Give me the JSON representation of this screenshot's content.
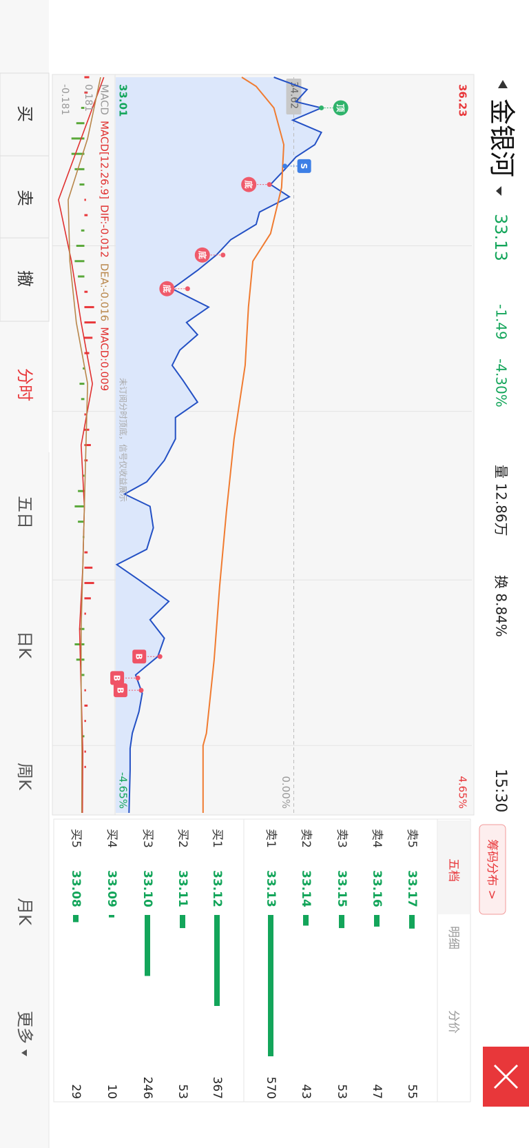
{
  "header": {
    "name": "金银河",
    "price": "33.13",
    "change": "-1.49",
    "change_pct": "-4.30%",
    "volume": "量 12.86万",
    "turnover": "换 8.84%",
    "time": "15:30"
  },
  "chart_data": [
    {
      "type": "line",
      "xlim": [
        0,
        240
      ],
      "xticks": [
        55,
        109,
        164,
        218
      ],
      "ylim": [
        33.01,
        36.23
      ],
      "yticks": [
        36.23,
        34.62,
        33.01
      ],
      "y2lim": [
        -4.65,
        4.65
      ],
      "y2ticks": [
        {
          "value": 4.65,
          "label": "4.65%"
        },
        {
          "value": 0,
          "label": "0.00%"
        },
        {
          "value": -4.65,
          "label": "-4.65%"
        }
      ],
      "up_color": "#e8373a",
      "down_color": "#13a55a",
      "note": "未订阅分时顶底，信号仅收益展示",
      "series": [
        {
          "color": "#2350c4",
          "fill": "#dce7fb",
          "x": [
            0,
            4,
            8,
            10,
            14,
            18,
            22,
            26,
            30,
            35,
            39,
            44,
            48,
            53,
            58,
            63,
            69,
            75,
            80,
            84,
            89,
            94,
            99,
            106,
            111,
            118,
            125,
            132,
            136,
            140,
            147,
            154,
            159,
            164,
            171,
            177,
            183,
            189,
            195,
            201,
            207,
            214,
            219,
            226,
            240
          ],
          "values": [
            34.44,
            34.74,
            34.64,
            34.87,
            34.61,
            34.87,
            34.81,
            34.64,
            34.54,
            34.41,
            34.58,
            34.31,
            34.28,
            34.05,
            33.92,
            33.75,
            33.52,
            33.85,
            33.65,
            33.75,
            33.59,
            33.52,
            33.62,
            33.75,
            33.55,
            33.55,
            33.45,
            33.29,
            33.09,
            33.32,
            33.35,
            33.29,
            33.02,
            33.22,
            33.49,
            33.32,
            33.45,
            33.39,
            33.19,
            33.25,
            33.22,
            33.16,
            33.14,
            33.14,
            33.13
          ]
        },
        {
          "color": "#f07b30",
          "x": [
            0,
            3,
            10,
            22,
            36,
            51,
            60,
            75,
            94,
            118,
            142,
            166,
            190,
            214,
            218,
            240
          ],
          "values": [
            34.15,
            34.28,
            34.44,
            34.53,
            34.51,
            34.41,
            34.25,
            34.21,
            34.18,
            34.08,
            34.01,
            33.95,
            33.9,
            33.83,
            33.8,
            33.8
          ]
        }
      ],
      "signals": [
        {
          "label": "顶",
          "x": 10,
          "y": 34.87,
          "color": "#2fb36b"
        },
        {
          "label": "S",
          "x": 29,
          "y": 34.54,
          "color": "#3d7fe6"
        },
        {
          "label": "底",
          "x": 35,
          "y": 34.4,
          "color": "#ef5b6b"
        },
        {
          "label": "底",
          "x": 58,
          "y": 33.98,
          "color": "#ef5b6b"
        },
        {
          "label": "底",
          "x": 69,
          "y": 33.66,
          "color": "#ef5b6b"
        },
        {
          "label": "B",
          "x": 189,
          "y": 33.41,
          "color": "#ef5366"
        },
        {
          "label": "B",
          "x": 196,
          "y": 33.21,
          "color": "#ef5366"
        },
        {
          "label": "B",
          "x": 200,
          "y": 33.24,
          "color": "#ef5366"
        }
      ]
    },
    {
      "type": "macd",
      "xlim": [
        0,
        240
      ],
      "ylim": [
        -0.181,
        0.181
      ],
      "yticks": [
        {
          "value": 0.181,
          "label": "0.181"
        },
        {
          "value": -0.181,
          "label": "-0.181"
        }
      ],
      "label": "MACD",
      "params": "MACD[12.26.9]",
      "dif_label": "DIF:-0.012",
      "dea_label": "DEA:-0.016",
      "macd_label": "MACD:0.009",
      "up_color": "#e8373a",
      "down_color": "#5aa83a",
      "bars": {
        "x": [
          0,
          5,
          10,
          15,
          20,
          25,
          30,
          35,
          40,
          45,
          50,
          55,
          60,
          65,
          70,
          75,
          80,
          85,
          90,
          95,
          100,
          105,
          110,
          115,
          120,
          125,
          130,
          135,
          140,
          145,
          150,
          155,
          160,
          165,
          170,
          175,
          180,
          185,
          190,
          195,
          200,
          205,
          210,
          215,
          220,
          225,
          230,
          235
        ],
        "values": [
          0.03,
          0.02,
          -0.02,
          -0.05,
          -0.08,
          -0.08,
          -0.06,
          -0.03,
          0.01,
          0.02,
          -0.02,
          -0.05,
          -0.06,
          -0.04,
          0.02,
          0.06,
          0.07,
          0.05,
          0.03,
          -0.01,
          -0.03,
          -0.02,
          0.01,
          0.03,
          0.04,
          0.02,
          -0.01,
          -0.04,
          -0.06,
          -0.04,
          -0.01,
          0.02,
          0.05,
          0.06,
          0.04,
          0.01,
          -0.03,
          -0.06,
          -0.05,
          -0.02,
          0.01,
          0.02,
          0.01,
          -0.01,
          0.01,
          0.01,
          0.0,
          0.0
        ]
      },
      "series": [
        {
          "color": "#e0302f",
          "x": [
            0,
            20,
            40,
            60,
            80,
            100,
            120,
            140,
            160,
            180,
            200,
            220,
            240
          ],
          "values": [
            0.12,
            -0.02,
            -0.16,
            -0.08,
            -0.02,
            0.05,
            -0.02,
            0.0,
            -0.01,
            -0.03,
            -0.02,
            -0.01,
            -0.012
          ]
        },
        {
          "color": "#b8864a",
          "x": [
            0,
            20,
            40,
            60,
            80,
            100,
            120,
            140,
            160,
            180,
            200,
            220,
            240
          ],
          "values": [
            0.1,
            0.02,
            -0.1,
            -0.09,
            -0.05,
            0.02,
            0.01,
            0.0,
            -0.01,
            -0.02,
            -0.02,
            -0.015,
            -0.016
          ]
        }
      ]
    }
  ],
  "order_book": {
    "button": "筹码分布 >",
    "tabs": [
      "五档",
      "明细",
      "分价"
    ],
    "color": "#13a55a",
    "rows": [
      [
        "卖5",
        "33.17",
        55
      ],
      [
        "卖4",
        "33.16",
        47
      ],
      [
        "卖3",
        "33.15",
        53
      ],
      [
        "卖2",
        "33.14",
        43
      ],
      [
        "卖1",
        "33.13",
        570
      ],
      [
        "买1",
        "33.12",
        367
      ],
      [
        "买2",
        "33.11",
        53
      ],
      [
        "买3",
        "33.10",
        246
      ],
      [
        "买4",
        "33.09",
        10
      ],
      [
        "买5",
        "33.08",
        29
      ]
    ]
  },
  "nav": [
    "买",
    "卖",
    "撤",
    "分时",
    "五日",
    "日K",
    "周K",
    "月K",
    "更多"
  ]
}
